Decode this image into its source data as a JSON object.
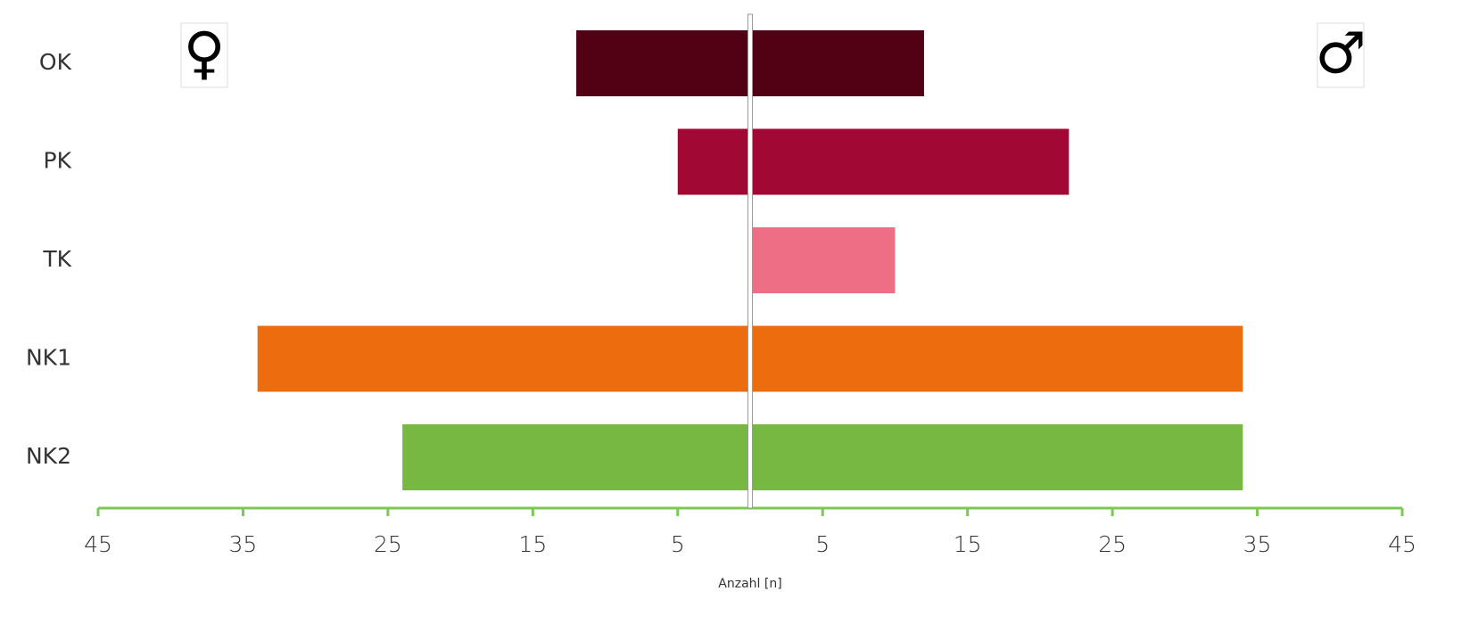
{
  "chart_data": {
    "type": "butterfly-bar",
    "categories": [
      "OK",
      "PK",
      "TK",
      "NK1",
      "NK2"
    ],
    "colors": [
      "#520014",
      "#a10834",
      "#ed6e85",
      "#ec6c0e",
      "#77b843"
    ],
    "x_label": "Anzahl [n]",
    "axis_color": "#7dc855",
    "series": [
      {
        "name": "♀",
        "side": "left",
        "values": [
          12,
          5,
          0,
          34,
          24
        ],
        "xlim": [
          0,
          45
        ],
        "xticks": [
          5,
          15,
          25,
          35,
          45
        ]
      },
      {
        "name": "♂",
        "side": "right",
        "values": [
          12,
          22,
          10,
          34,
          34
        ],
        "xlim": [
          0,
          45
        ],
        "xticks": [
          5,
          15,
          25,
          35,
          45
        ]
      }
    ]
  }
}
